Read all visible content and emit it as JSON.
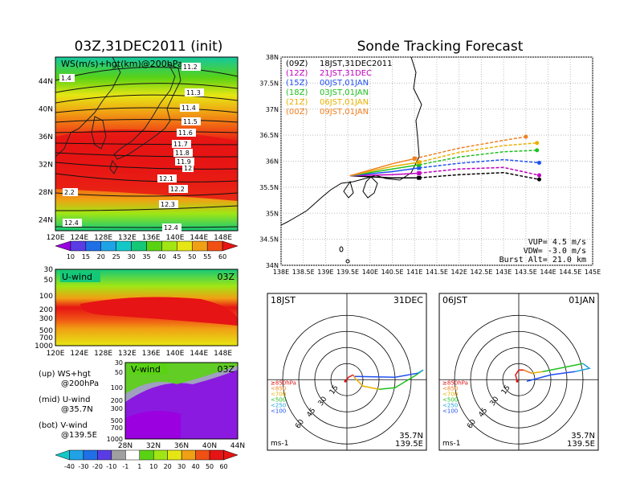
{
  "colors": {
    "bar": [
      "#9b00e0",
      "#5a3ce6",
      "#1f6fe6",
      "#1fa3e6",
      "#14c8c8",
      "#14c878",
      "#5ad214",
      "#a0e614",
      "#e6e614",
      "#f0a014",
      "#f05014",
      "#e61414"
    ],
    "tracks": {
      "00Z": "#000000",
      "12Z": "#c000c0",
      "15Z": "#2050f0",
      "18Z": "#20c020",
      "21Z": "#e8b000",
      "00Z_b": "#f08020",
      "red": "#e01010"
    }
  },
  "map_panel": {
    "title": "03Z,31DEC2011 (init)",
    "label": "WS(m/s)+hgt(km)@200hPa",
    "lon_ticks": [
      "120E",
      "124E",
      "128E",
      "132E",
      "136E",
      "140E",
      "144E",
      "148E"
    ],
    "lat_ticks": [
      "44N",
      "40N",
      "36N",
      "32N",
      "28N",
      "24N"
    ],
    "contour_labels": [
      "11.2",
      "11.3",
      "11.4",
      "11.5",
      "11.6",
      "11.7",
      "11.8",
      "11.9",
      "12",
      "12.1",
      "12.2",
      "12.3",
      "12.4",
      "2.2",
      "1.4",
      "12.4"
    ],
    "colorbar": [
      "10",
      "15",
      "20",
      "25",
      "30",
      "35",
      "40",
      "45",
      "50",
      "55",
      "60"
    ]
  },
  "uwind_panel": {
    "label": "U-wind",
    "time": "03Z",
    "p_ticks": [
      "30",
      "50",
      "100",
      "200",
      "300",
      "500",
      "700",
      "1000"
    ],
    "lon_ticks": [
      "120E",
      "124E",
      "128E",
      "132E",
      "136E",
      "140E",
      "144E",
      "148E"
    ]
  },
  "vwind_panel": {
    "label": "V-wind",
    "time": "03Z",
    "p_ticks": [
      "30",
      "50",
      "100",
      "200",
      "300",
      "500",
      "700",
      "1000"
    ],
    "lat_ticks": [
      "28N",
      "32N",
      "36N",
      "40N",
      "44N"
    ],
    "colorbar": [
      "-40",
      "-30",
      "-20",
      "-10",
      "-1",
      "1",
      "10",
      "20",
      "30",
      "40",
      "50",
      "60"
    ]
  },
  "legend": {
    "lines": [
      "(up) WS+hgt",
      "@200hPa",
      "(mid) U-wind",
      "@35.7N",
      "(bot) V-wind",
      "@139.5E"
    ]
  },
  "track_panel": {
    "title": "Sonde Tracking Forecast",
    "lat_ticks": [
      "38N",
      "37.5N",
      "37N",
      "36.5N",
      "36N",
      "35.5N",
      "35N",
      "34.5N",
      "34N"
    ],
    "lon_ticks": [
      "138E",
      "138.5E",
      "139E",
      "139.5E",
      "140E",
      "140.5E",
      "141E",
      "141.5E",
      "142E",
      "142.5E",
      "143E",
      "143.5E",
      "144E",
      "144.5E",
      "145E"
    ],
    "forecasts": [
      {
        "z": "(09Z)",
        "jst": "18JST,31DEC2011"
      },
      {
        "z": "(12Z)",
        "jst": "21JST,31DEC"
      },
      {
        "z": "(15Z)",
        "jst": "00JST,01JAN"
      },
      {
        "z": "(18Z)",
        "jst": "03JST,01JAN"
      },
      {
        "z": "(21Z)",
        "jst": "06JST,01JAN"
      },
      {
        "z": "(00Z)",
        "jst": "09JST,01JAN"
      }
    ],
    "vup": "VUP= 4.5 m/s",
    "vdw": "VDW= -3.0 m/s",
    "burst": "Burst Alt= 21.0 km"
  },
  "hodo_left": {
    "time": "18JST",
    "date": "31DEC",
    "rings": [
      "15",
      "30",
      "45",
      "60"
    ],
    "layers": [
      "≥850hPa",
      "<850",
      "<700",
      "<500",
      "<250",
      "<100"
    ],
    "unit": "ms-1",
    "lat": "35.7N",
    "lon": "139.5E"
  },
  "hodo_right": {
    "time": "06JST",
    "date": "01JAN",
    "rings": [
      "15",
      "30",
      "45",
      "60"
    ],
    "layers": [
      "≥850hPa",
      "<850",
      "<700",
      "<500",
      "<250",
      "<100"
    ],
    "unit": "ms-1",
    "lat": "35.7N",
    "lon": "139.5E"
  },
  "chart_data": {
    "type": "line",
    "title": "Sonde Tracking Forecast",
    "xlim": [
      138,
      145
    ],
    "ylim": [
      34,
      38
    ],
    "series": [
      {
        "name": "(09Z) 18JST,31DEC2011",
        "x": [
          139.55,
          140.5,
          141.1,
          142.0,
          143.0,
          143.8
        ],
        "y": [
          35.72,
          35.68,
          35.68,
          35.74,
          35.78,
          35.65
        ]
      },
      {
        "name": "(12Z) 21JST,31DEC",
        "x": [
          139.55,
          140.5,
          141.1,
          142.0,
          143.0,
          143.8
        ],
        "y": [
          35.72,
          35.74,
          35.77,
          35.85,
          35.88,
          35.73
        ]
      },
      {
        "name": "(15Z) 00JST,01JAN",
        "x": [
          139.55,
          140.5,
          141.1,
          142.0,
          143.0,
          143.8
        ],
        "y": [
          35.72,
          35.8,
          35.87,
          35.96,
          36.03,
          35.97
        ]
      },
      {
        "name": "(18Z) 03JST,01JAN",
        "x": [
          139.55,
          140.5,
          141.1,
          142.0,
          143.0,
          143.75
        ],
        "y": [
          35.72,
          35.85,
          35.93,
          36.08,
          36.18,
          36.21
        ]
      },
      {
        "name": "(21Z) 06JST,01JAN",
        "x": [
          139.55,
          140.5,
          141.1,
          142.0,
          143.0,
          143.75
        ],
        "y": [
          35.72,
          35.9,
          35.98,
          36.17,
          36.3,
          36.35
        ]
      },
      {
        "name": "(00Z) 09JST,01JAN",
        "x": [
          139.55,
          140.5,
          141.0,
          142.0,
          143.0,
          143.5
        ],
        "y": [
          35.72,
          35.95,
          36.05,
          36.25,
          36.4,
          36.47
        ]
      }
    ]
  }
}
